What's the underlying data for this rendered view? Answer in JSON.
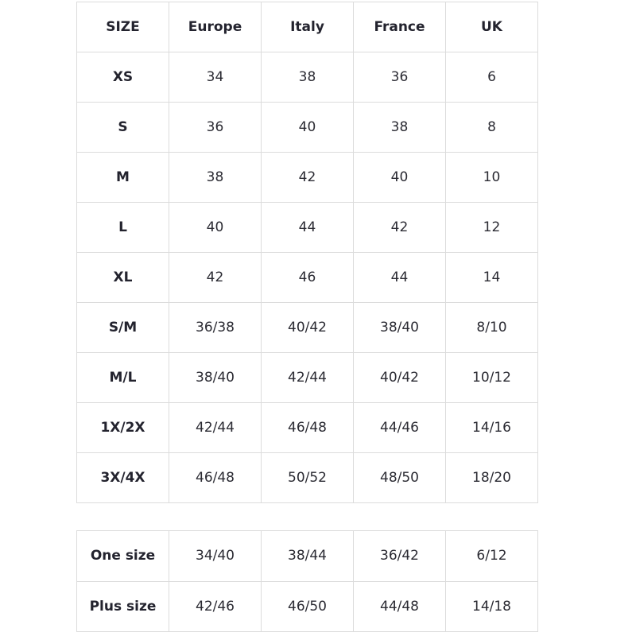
{
  "main_table": {
    "headers": [
      "SIZE",
      "Europe",
      "Italy",
      "France",
      "UK"
    ],
    "rows": [
      [
        "XS",
        "34",
        "38",
        "36",
        "6"
      ],
      [
        "S",
        "36",
        "40",
        "38",
        "8"
      ],
      [
        "M",
        "38",
        "42",
        "40",
        "10"
      ],
      [
        "L",
        "40",
        "44",
        "42",
        "12"
      ],
      [
        "XL",
        "42",
        "46",
        "44",
        "14"
      ],
      [
        "S/M",
        "36/38",
        "40/42",
        "38/40",
        "8/10"
      ],
      [
        "M/L",
        "38/40",
        "42/44",
        "40/42",
        "10/12"
      ],
      [
        "1X/2X",
        "42/44",
        "46/48",
        "44/46",
        "14/16"
      ],
      [
        "3X/4X",
        "46/48",
        "50/52",
        "48/50",
        "18/20"
      ]
    ]
  },
  "extra_table": {
    "rows": [
      [
        "One size",
        "34/40",
        "38/44",
        "36/42",
        "6/12"
      ],
      [
        "Plus size",
        "42/46",
        "46/50",
        "44/48",
        "14/18"
      ]
    ]
  },
  "colors": {
    "border": "#dcdcdc",
    "text": "#2b2b33"
  }
}
